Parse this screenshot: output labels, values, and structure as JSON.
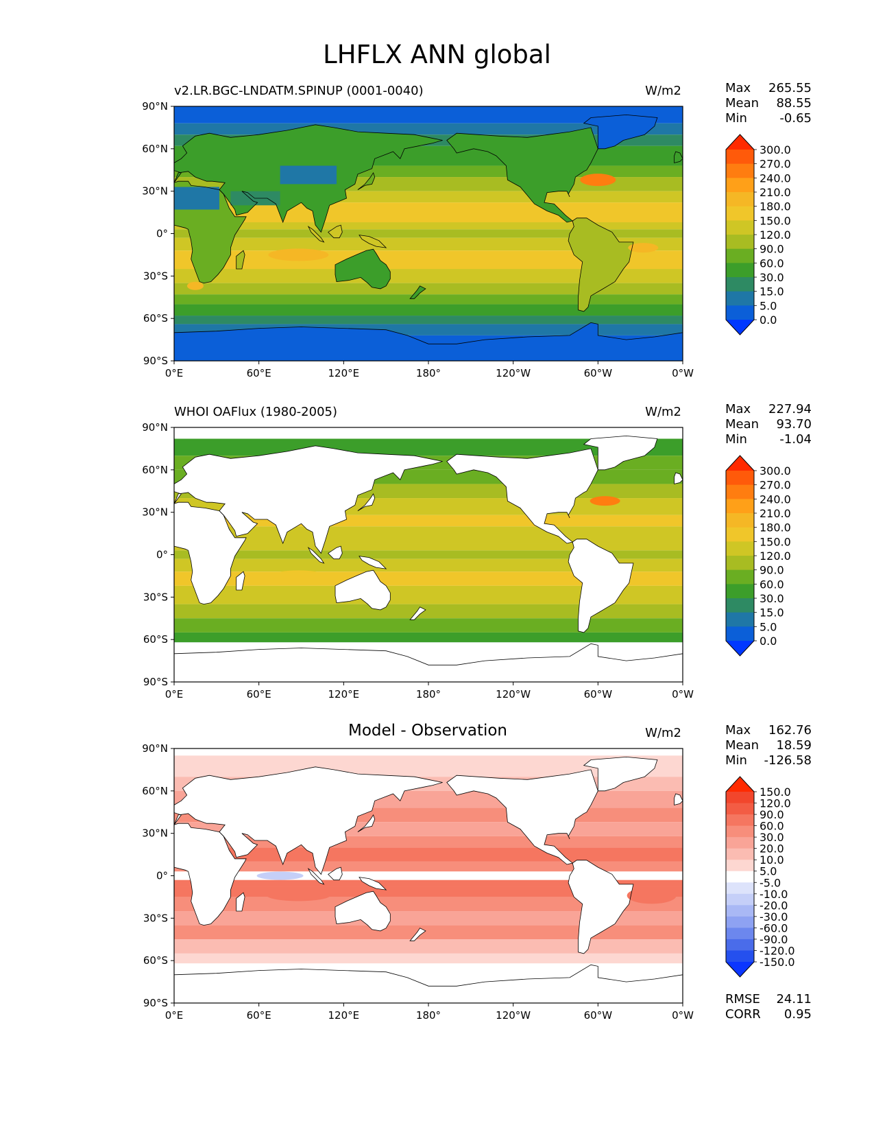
{
  "figure_title": "LHFLX ANN global",
  "xticks": [
    "0°E",
    "60°E",
    "120°E",
    "180°",
    "120°W",
    "60°W",
    "0°W"
  ],
  "yticks": [
    "90°N",
    "60°N",
    "30°N",
    "0°",
    "30°S",
    "60°S",
    "90°S"
  ],
  "panels": [
    {
      "title": "v2.LR.BGC-LNDATM.SPINUP (0001-0040)",
      "title_style": "left",
      "units": "W/m2",
      "stats": [
        {
          "label": "Max",
          "value": "265.55"
        },
        {
          "label": "Mean",
          "value": "88.55"
        },
        {
          "label": "Min",
          "value": "-0.65"
        }
      ],
      "colorbar_levels": [
        "300.0",
        "270.0",
        "240.0",
        "210.0",
        "180.0",
        "150.0",
        "120.0",
        "90.0",
        "60.0",
        "30.0",
        "15.0",
        "5.0",
        "0.0"
      ],
      "colorbar_colors": [
        "#ff2a00",
        "#ff5a0a",
        "#ff7d10",
        "#ffa018",
        "#f5b725",
        "#f0c62a",
        "#cfc625",
        "#a8bc22",
        "#6aae22",
        "#3c9e2a",
        "#2e8a63",
        "#1f77a6",
        "#0b5fd8",
        "#0038ff"
      ],
      "masked": false
    },
    {
      "title": "WHOI OAFlux (1980-2005)",
      "title_style": "left",
      "units": "W/m2",
      "stats": [
        {
          "label": "Max",
          "value": "227.94"
        },
        {
          "label": "Mean",
          "value": "93.70"
        },
        {
          "label": "Min",
          "value": "-1.04"
        }
      ],
      "colorbar_levels": [
        "300.0",
        "270.0",
        "240.0",
        "210.0",
        "180.0",
        "150.0",
        "120.0",
        "90.0",
        "60.0",
        "30.0",
        "15.0",
        "5.0",
        "0.0"
      ],
      "colorbar_colors": [
        "#ff2a00",
        "#ff5a0a",
        "#ff7d10",
        "#ffa018",
        "#f5b725",
        "#f0c62a",
        "#cfc625",
        "#a8bc22",
        "#6aae22",
        "#3c9e2a",
        "#2e8a63",
        "#1f77a6",
        "#0b5fd8",
        "#0038ff"
      ],
      "masked": true
    },
    {
      "title": "Model - Observation",
      "title_style": "center",
      "units": "W/m2",
      "stats": [
        {
          "label": "Max",
          "value": "162.76"
        },
        {
          "label": "Mean",
          "value": "18.59"
        },
        {
          "label": "Min",
          "value": "-126.58"
        }
      ],
      "colorbar_levels": [
        "150.0",
        "120.0",
        "90.0",
        "60.0",
        "30.0",
        "20.0",
        "10.0",
        "5.0",
        "-5.0",
        "-10.0",
        "-20.0",
        "-30.0",
        "-60.0",
        "-90.0",
        "-120.0",
        "-150.0"
      ],
      "colorbar_colors": [
        "#ff2a00",
        "#f2462c",
        "#f35c44",
        "#f57660",
        "#f78e7b",
        "#f9a497",
        "#fbbcb2",
        "#fdd7d1",
        "#ffffff",
        "#dde3fb",
        "#c5cff8",
        "#a9b8f5",
        "#8ea2f2",
        "#6c87ee",
        "#4a6cea",
        "#2550ee",
        "#0b36ff"
      ],
      "masked": true,
      "extra": [
        {
          "label": "RMSE",
          "value": "24.11"
        },
        {
          "label": "CORR",
          "value": "0.95"
        }
      ]
    }
  ]
}
